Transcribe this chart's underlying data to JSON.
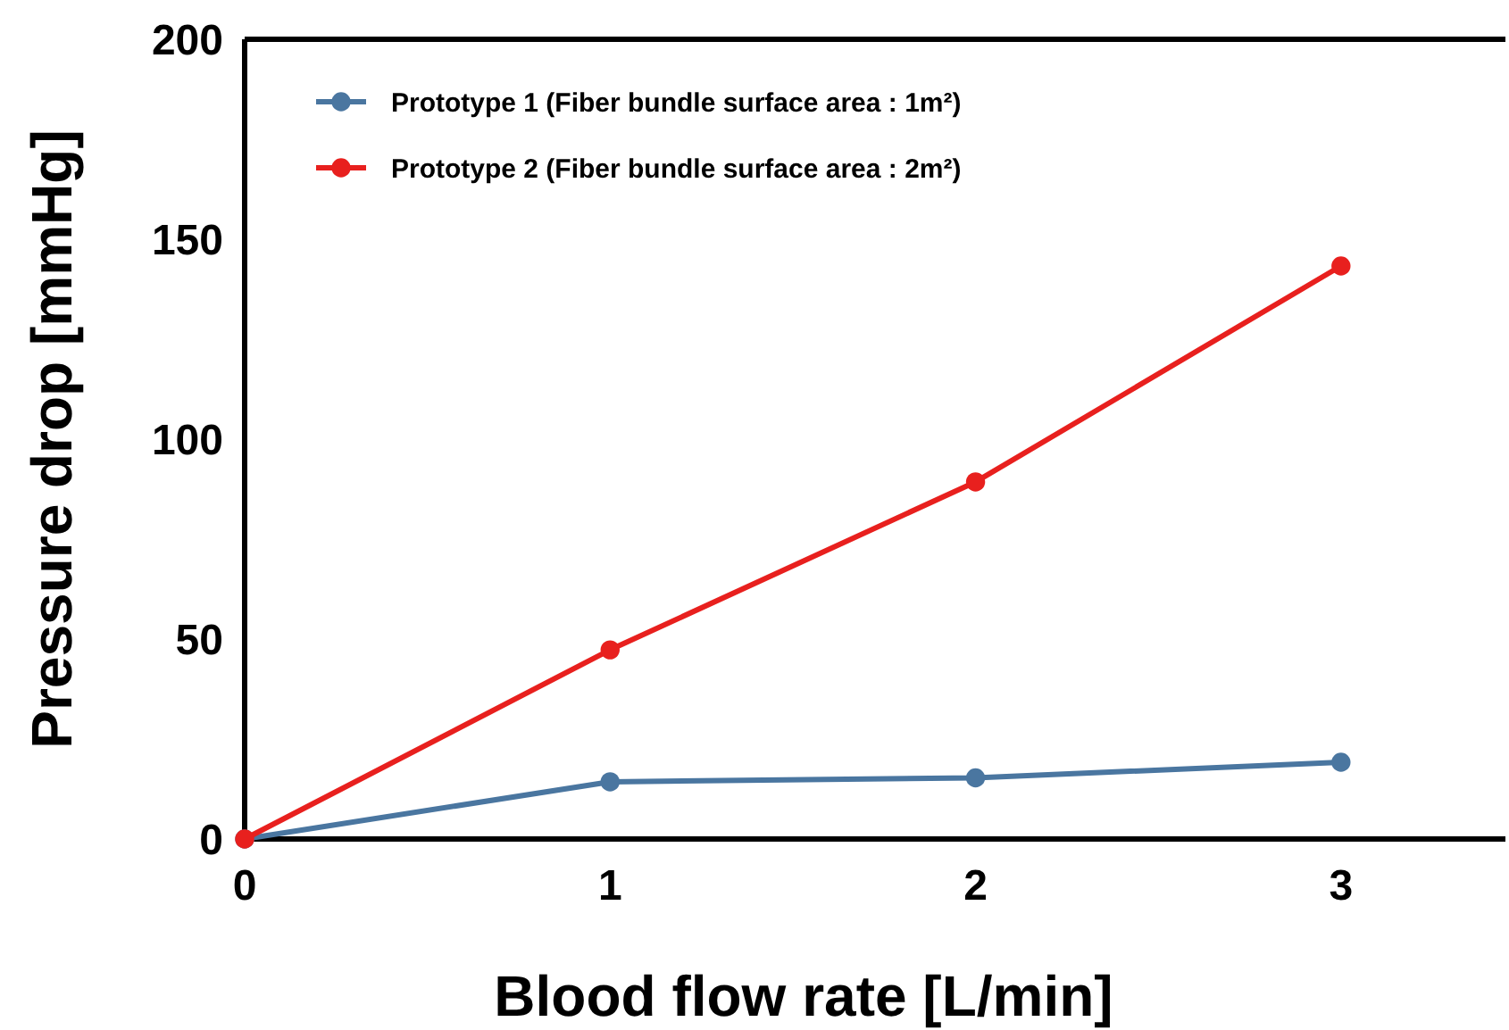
{
  "chart_data": {
    "type": "line",
    "xlabel": "Blood flow rate [L/min]",
    "ylabel": "Pressure drop [mmHg]",
    "x": [
      0,
      1,
      2,
      3
    ],
    "xlim": [
      0,
      3.45
    ],
    "xticks": [
      0,
      1,
      2,
      3
    ],
    "ylim": [
      0,
      200
    ],
    "yticks": [
      0,
      50,
      100,
      150,
      200
    ],
    "series": [
      {
        "name": "Prototype 1 (Fiber bundle surface area : 1m²)",
        "color": "#4a76a0",
        "values": [
          0,
          14.3,
          15.3,
          19.2
        ]
      },
      {
        "name": "Prototype 2 (Fiber bundle surface area : 2m²)",
        "color": "#e8201e",
        "values": [
          0,
          47.3,
          89.3,
          143.3
        ]
      }
    ],
    "marker": "circle",
    "legend": "top left",
    "grid": false
  }
}
